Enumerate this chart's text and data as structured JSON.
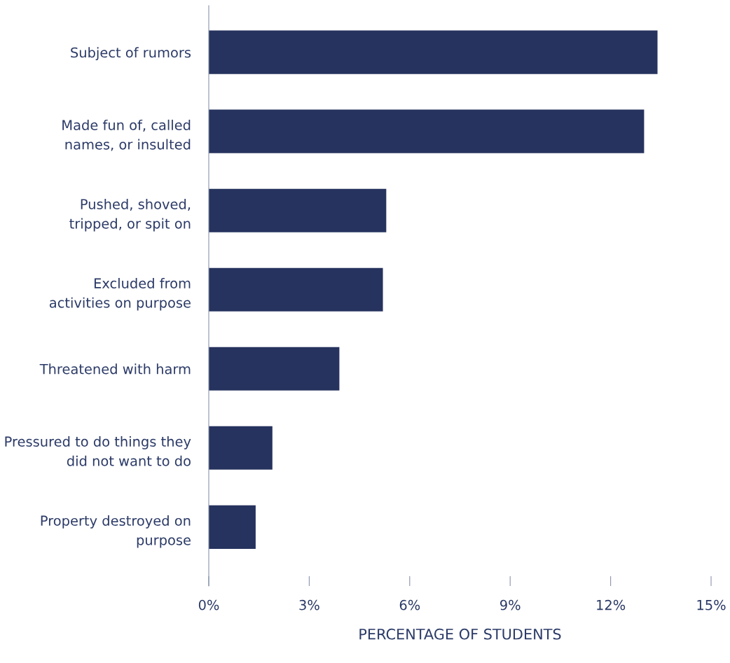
{
  "chart_data": {
    "type": "bar",
    "orientation": "horizontal",
    "xlabel": "PERCENTAGE OF STUDENTS",
    "categories": [
      "Subject of rumors",
      "Made fun of, called\nnames, or insulted",
      "Pushed, shoved,\ntripped, or spit on",
      "Excluded from\nactivities on purpose",
      "Threatened with harm",
      "Pressured to do things they\ndid not want to do",
      "Property destroyed on\npurpose"
    ],
    "values": [
      13.4,
      13.0,
      5.3,
      5.2,
      3.9,
      1.9,
      1.4
    ],
    "color": "#26335e",
    "xlim": [
      0,
      15
    ],
    "xticks": [
      {
        "value": 0,
        "label": "0%"
      },
      {
        "value": 3,
        "label": "3%"
      },
      {
        "value": 6,
        "label": "6%"
      },
      {
        "value": 9,
        "label": "9%"
      },
      {
        "value": 12,
        "label": "12%"
      },
      {
        "value": 15,
        "label": "15%"
      }
    ],
    "grid": false,
    "legend": false
  }
}
